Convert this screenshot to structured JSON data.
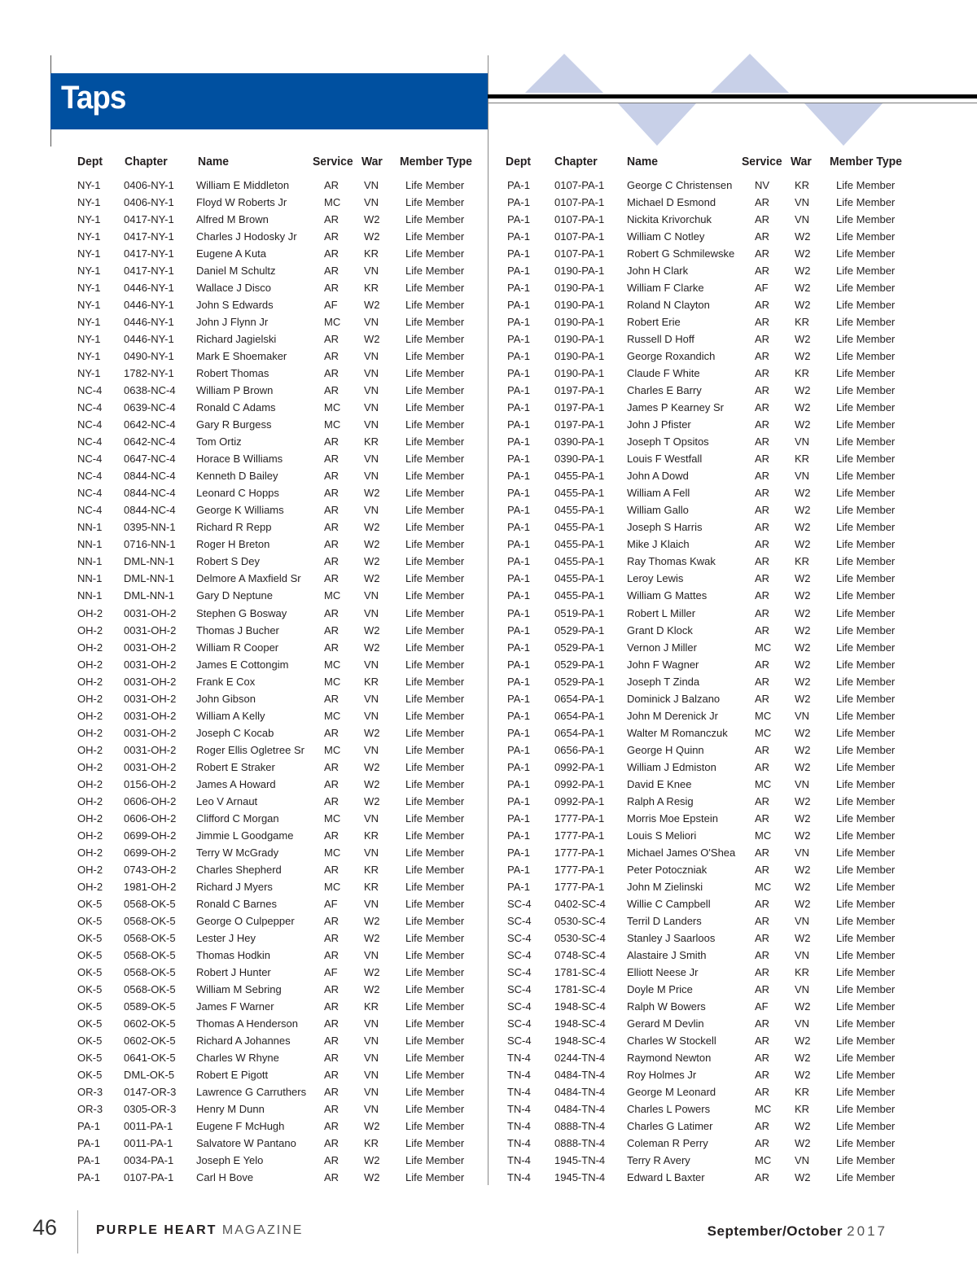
{
  "header": {
    "title": "Taps"
  },
  "columns": [
    "Dept",
    "Chapter",
    "Name",
    "Service",
    "War",
    "Member Type"
  ],
  "colors": {
    "banner": "#0050a0",
    "decoration": "#c8d0e8"
  },
  "left": {
    "rows": [
      [
        "NY-1",
        "0406-NY-1",
        "William E Middleton",
        "AR",
        "VN",
        "Life Member"
      ],
      [
        "NY-1",
        "0406-NY-1",
        "Floyd W Roberts Jr",
        "MC",
        "VN",
        "Life Member"
      ],
      [
        "NY-1",
        "0417-NY-1",
        "Alfred M Brown",
        "AR",
        "W2",
        "Life Member"
      ],
      [
        "NY-1",
        "0417-NY-1",
        "Charles J Hodosky Jr",
        "AR",
        "W2",
        "Life Member"
      ],
      [
        "NY-1",
        "0417-NY-1",
        "Eugene A Kuta",
        "AR",
        "KR",
        "Life Member"
      ],
      [
        "NY-1",
        "0417-NY-1",
        "Daniel M Schultz",
        "AR",
        "VN",
        "Life Member"
      ],
      [
        "NY-1",
        "0446-NY-1",
        "Wallace J Disco",
        "AR",
        "KR",
        "Life Member"
      ],
      [
        "NY-1",
        "0446-NY-1",
        "John S Edwards",
        "AF",
        "W2",
        "Life Member"
      ],
      [
        "NY-1",
        "0446-NY-1",
        "John J Flynn Jr",
        "MC",
        "VN",
        "Life Member"
      ],
      [
        "NY-1",
        "0446-NY-1",
        "Richard Jagielski",
        "AR",
        "W2",
        "Life Member"
      ],
      [
        "NY-1",
        "0490-NY-1",
        "Mark E Shoemaker",
        "AR",
        "VN",
        "Life Member"
      ],
      [
        "NY-1",
        "1782-NY-1",
        "Robert Thomas",
        "AR",
        "VN",
        "Life Member"
      ],
      [
        "NC-4",
        "0638-NC-4",
        "William P Brown",
        "AR",
        "VN",
        "Life Member"
      ],
      [
        "NC-4",
        "0639-NC-4",
        "Ronald C Adams",
        "MC",
        "VN",
        "Life Member"
      ],
      [
        "NC-4",
        "0642-NC-4",
        "Gary R Burgess",
        "MC",
        "VN",
        "Life Member"
      ],
      [
        "NC-4",
        "0642-NC-4",
        "Tom Ortiz",
        "AR",
        "KR",
        "Life Member"
      ],
      [
        "NC-4",
        "0647-NC-4",
        "Horace B Williams",
        "AR",
        "VN",
        "Life Member"
      ],
      [
        "NC-4",
        "0844-NC-4",
        "Kenneth D Bailey",
        "AR",
        "VN",
        "Life Member"
      ],
      [
        "NC-4",
        "0844-NC-4",
        "Leonard C Hopps",
        "AR",
        "W2",
        "Life Member"
      ],
      [
        "NC-4",
        "0844-NC-4",
        "George K Williams",
        "AR",
        "VN",
        "Life Member"
      ],
      [
        "NN-1",
        "0395-NN-1",
        "Richard R Repp",
        "AR",
        "W2",
        "Life Member"
      ],
      [
        "NN-1",
        "0716-NN-1",
        "Roger H Breton",
        "AR",
        "W2",
        "Life Member"
      ],
      [
        "NN-1",
        "DML-NN-1",
        "Robert S Dey",
        "AR",
        "W2",
        "Life Member"
      ],
      [
        "NN-1",
        "DML-NN-1",
        "Delmore A Maxfield Sr",
        "AR",
        "W2",
        "Life Member"
      ],
      [
        "NN-1",
        "DML-NN-1",
        "Gary D Neptune",
        "MC",
        "VN",
        "Life Member"
      ],
      [
        "OH-2",
        "0031-OH-2",
        "Stephen G Bosway",
        "AR",
        "VN",
        "Life Member"
      ],
      [
        "OH-2",
        "0031-OH-2",
        "Thomas J Bucher",
        "AR",
        "W2",
        "Life Member"
      ],
      [
        "OH-2",
        "0031-OH-2",
        "William R Cooper",
        "AR",
        "W2",
        "Life Member"
      ],
      [
        "OH-2",
        "0031-OH-2",
        "James E Cottongim",
        "MC",
        "VN",
        "Life Member"
      ],
      [
        "OH-2",
        "0031-OH-2",
        "Frank E Cox",
        "MC",
        "KR",
        "Life Member"
      ],
      [
        "OH-2",
        "0031-OH-2",
        "John Gibson",
        "AR",
        "VN",
        "Life Member"
      ],
      [
        "OH-2",
        "0031-OH-2",
        "William A Kelly",
        "MC",
        "VN",
        "Life Member"
      ],
      [
        "OH-2",
        "0031-OH-2",
        "Joseph C Kocab",
        "AR",
        "W2",
        "Life Member"
      ],
      [
        "OH-2",
        "0031-OH-2",
        "Roger Ellis Ogletree Sr",
        "MC",
        "VN",
        "Life Member"
      ],
      [
        "OH-2",
        "0031-OH-2",
        "Robert E Straker",
        "AR",
        "W2",
        "Life Member"
      ],
      [
        "OH-2",
        "0156-OH-2",
        "James A Howard",
        "AR",
        "W2",
        "Life Member"
      ],
      [
        "OH-2",
        "0606-OH-2",
        "Leo V Arnaut",
        "AR",
        "W2",
        "Life Member"
      ],
      [
        "OH-2",
        "0606-OH-2",
        "Clifford C Morgan",
        "MC",
        "VN",
        "Life Member"
      ],
      [
        "OH-2",
        "0699-OH-2",
        "Jimmie L Goodgame",
        "AR",
        "KR",
        "Life Member"
      ],
      [
        "OH-2",
        "0699-OH-2",
        "Terry W McGrady",
        "MC",
        "VN",
        "Life Member"
      ],
      [
        "OH-2",
        "0743-OH-2",
        "Charles Shepherd",
        "AR",
        "KR",
        "Life Member"
      ],
      [
        "OH-2",
        "1981-OH-2",
        "Richard J Myers",
        "MC",
        "KR",
        "Life Member"
      ],
      [
        "OK-5",
        "0568-OK-5",
        "Ronald C Barnes",
        "AF",
        "VN",
        "Life Member"
      ],
      [
        "OK-5",
        "0568-OK-5",
        "George O Culpepper",
        "AR",
        "W2",
        "Life Member"
      ],
      [
        "OK-5",
        "0568-OK-5",
        "Lester J Hey",
        "AR",
        "W2",
        "Life Member"
      ],
      [
        "OK-5",
        "0568-OK-5",
        "Thomas Hodkin",
        "AR",
        "VN",
        "Life Member"
      ],
      [
        "OK-5",
        "0568-OK-5",
        "Robert J Hunter",
        "AF",
        "W2",
        "Life Member"
      ],
      [
        "OK-5",
        "0568-OK-5",
        "William M Sebring",
        "AR",
        "W2",
        "Life Member"
      ],
      [
        "OK-5",
        "0589-OK-5",
        "James F Warner",
        "AR",
        "KR",
        "Life Member"
      ],
      [
        "OK-5",
        "0602-OK-5",
        "Thomas A Henderson",
        "AR",
        "VN",
        "Life Member"
      ],
      [
        "OK-5",
        "0602-OK-5",
        "Richard A Johannes",
        "AR",
        "VN",
        "Life Member"
      ],
      [
        "OK-5",
        "0641-OK-5",
        "Charles W Rhyne",
        "AR",
        "VN",
        "Life Member"
      ],
      [
        "OK-5",
        "DML-OK-5",
        "Robert E Pigott",
        "AR",
        "VN",
        "Life Member"
      ],
      [
        "OR-3",
        "0147-OR-3",
        "Lawrence G Carruthers",
        "AR",
        "VN",
        "Life Member"
      ],
      [
        "OR-3",
        "0305-OR-3",
        "Henry M Dunn",
        "AR",
        "VN",
        "Life Member"
      ],
      [
        "PA-1",
        "0011-PA-1",
        "Eugene F McHugh",
        "AR",
        "W2",
        "Life Member"
      ],
      [
        "PA-1",
        "0011-PA-1",
        "Salvatore W Pantano",
        "AR",
        "KR",
        "Life Member"
      ],
      [
        "PA-1",
        "0034-PA-1",
        "Joseph E Yelo",
        "AR",
        "W2",
        "Life Member"
      ],
      [
        "PA-1",
        "0107-PA-1",
        "Carl H Bove",
        "AR",
        "W2",
        "Life Member"
      ]
    ]
  },
  "right": {
    "rows": [
      [
        "PA-1",
        "0107-PA-1",
        "George C Christensen",
        "NV",
        "KR",
        "Life Member"
      ],
      [
        "PA-1",
        "0107-PA-1",
        "Michael D Esmond",
        "AR",
        "VN",
        "Life Member"
      ],
      [
        "PA-1",
        "0107-PA-1",
        "Nickita Krivorchuk",
        "AR",
        "VN",
        "Life Member"
      ],
      [
        "PA-1",
        "0107-PA-1",
        "William C Notley",
        "AR",
        "W2",
        "Life Member"
      ],
      [
        "PA-1",
        "0107-PA-1",
        "Robert G Schmilewske",
        "AR",
        "W2",
        "Life Member"
      ],
      [
        "PA-1",
        "0190-PA-1",
        "John H Clark",
        "AR",
        "W2",
        "Life Member"
      ],
      [
        "PA-1",
        "0190-PA-1",
        "William F Clarke",
        "AF",
        "W2",
        "Life Member"
      ],
      [
        "PA-1",
        "0190-PA-1",
        "Roland N Clayton",
        "AR",
        "W2",
        "Life Member"
      ],
      [
        "PA-1",
        "0190-PA-1",
        "Robert Erie",
        "AR",
        "KR",
        "Life Member"
      ],
      [
        "PA-1",
        "0190-PA-1",
        "Russell D Hoff",
        "AR",
        "W2",
        "Life Member"
      ],
      [
        "PA-1",
        "0190-PA-1",
        "George Roxandich",
        "AR",
        "W2",
        "Life Member"
      ],
      [
        "PA-1",
        "0190-PA-1",
        "Claude F White",
        "AR",
        "KR",
        "Life Member"
      ],
      [
        "PA-1",
        "0197-PA-1",
        "Charles E Barry",
        "AR",
        "W2",
        "Life Member"
      ],
      [
        "PA-1",
        "0197-PA-1",
        "James P Kearney Sr",
        "AR",
        "W2",
        "Life Member"
      ],
      [
        "PA-1",
        "0197-PA-1",
        "John J Pfister",
        "AR",
        "W2",
        "Life Member"
      ],
      [
        "PA-1",
        "0390-PA-1",
        "Joseph T Opsitos",
        "AR",
        "VN",
        "Life Member"
      ],
      [
        "PA-1",
        "0390-PA-1",
        "Louis F Westfall",
        "AR",
        "KR",
        "Life Member"
      ],
      [
        "PA-1",
        "0455-PA-1",
        "John A Dowd",
        "AR",
        "VN",
        "Life Member"
      ],
      [
        "PA-1",
        "0455-PA-1",
        "William A Fell",
        "AR",
        "W2",
        "Life Member"
      ],
      [
        "PA-1",
        "0455-PA-1",
        "William Gallo",
        "AR",
        "W2",
        "Life Member"
      ],
      [
        "PA-1",
        "0455-PA-1",
        "Joseph S Harris",
        "AR",
        "W2",
        "Life Member"
      ],
      [
        "PA-1",
        "0455-PA-1",
        "Mike J Klaich",
        "AR",
        "W2",
        "Life Member"
      ],
      [
        "PA-1",
        "0455-PA-1",
        "Ray Thomas Kwak",
        "AR",
        "KR",
        "Life Member"
      ],
      [
        "PA-1",
        "0455-PA-1",
        "Leroy Lewis",
        "AR",
        "W2",
        "Life Member"
      ],
      [
        "PA-1",
        "0455-PA-1",
        "William G Mattes",
        "AR",
        "W2",
        "Life Member"
      ],
      [
        "PA-1",
        "0519-PA-1",
        "Robert L Miller",
        "AR",
        "W2",
        "Life Member"
      ],
      [
        "PA-1",
        "0529-PA-1",
        "Grant D Klock",
        "AR",
        "W2",
        "Life Member"
      ],
      [
        "PA-1",
        "0529-PA-1",
        "Vernon J Miller",
        "MC",
        "W2",
        "Life Member"
      ],
      [
        "PA-1",
        "0529-PA-1",
        "John F Wagner",
        "AR",
        "W2",
        "Life Member"
      ],
      [
        "PA-1",
        "0529-PA-1",
        "Joseph T Zinda",
        "AR",
        "W2",
        "Life Member"
      ],
      [
        "PA-1",
        "0654-PA-1",
        "Dominick J Balzano",
        "AR",
        "W2",
        "Life Member"
      ],
      [
        "PA-1",
        "0654-PA-1",
        "John M Derenick Jr",
        "MC",
        "VN",
        "Life Member"
      ],
      [
        "PA-1",
        "0654-PA-1",
        "Walter M Romanczuk",
        "MC",
        "W2",
        "Life Member"
      ],
      [
        "PA-1",
        "0656-PA-1",
        "George H Quinn",
        "AR",
        "W2",
        "Life Member"
      ],
      [
        "PA-1",
        "0992-PA-1",
        "William J Edmiston",
        "AR",
        "W2",
        "Life Member"
      ],
      [
        "PA-1",
        "0992-PA-1",
        "David E Knee",
        "MC",
        "VN",
        "Life Member"
      ],
      [
        "PA-1",
        "0992-PA-1",
        "Ralph A Resig",
        "AR",
        "W2",
        "Life Member"
      ],
      [
        "PA-1",
        "1777-PA-1",
        "Morris Moe Epstein",
        "AR",
        "W2",
        "Life Member"
      ],
      [
        "PA-1",
        "1777-PA-1",
        "Louis S Meliori",
        "MC",
        "W2",
        "Life Member"
      ],
      [
        "PA-1",
        "1777-PA-1",
        "Michael James O'Shea",
        "AR",
        "VN",
        "Life Member"
      ],
      [
        "PA-1",
        "1777-PA-1",
        "Peter Potoczniak",
        "AR",
        "W2",
        "Life Member"
      ],
      [
        "PA-1",
        "1777-PA-1",
        "John M Zielinski",
        "MC",
        "W2",
        "Life Member"
      ],
      [
        "SC-4",
        "0402-SC-4",
        "Willie C Campbell",
        "AR",
        "W2",
        "Life Member"
      ],
      [
        "SC-4",
        "0530-SC-4",
        "Terril D Landers",
        "AR",
        "VN",
        "Life Member"
      ],
      [
        "SC-4",
        "0530-SC-4",
        "Stanley J Saarloos",
        "AR",
        "W2",
        "Life Member"
      ],
      [
        "SC-4",
        "0748-SC-4",
        "Alastaire J Smith",
        "AR",
        "VN",
        "Life Member"
      ],
      [
        "SC-4",
        "1781-SC-4",
        "Elliott Neese Jr",
        "AR",
        "KR",
        "Life Member"
      ],
      [
        "SC-4",
        "1781-SC-4",
        "Doyle M Price",
        "AR",
        "VN",
        "Life Member"
      ],
      [
        "SC-4",
        "1948-SC-4",
        "Ralph W Bowers",
        "AF",
        "W2",
        "Life Member"
      ],
      [
        "SC-4",
        "1948-SC-4",
        "Gerard M Devlin",
        "AR",
        "VN",
        "Life Member"
      ],
      [
        "SC-4",
        "1948-SC-4",
        "Charles W Stockell",
        "AR",
        "W2",
        "Life Member"
      ],
      [
        "TN-4",
        "0244-TN-4",
        "Raymond Newton",
        "AR",
        "W2",
        "Life Member"
      ],
      [
        "TN-4",
        "0484-TN-4",
        "Roy Holmes Jr",
        "AR",
        "W2",
        "Life Member"
      ],
      [
        "TN-4",
        "0484-TN-4",
        "George M Leonard",
        "AR",
        "KR",
        "Life Member"
      ],
      [
        "TN-4",
        "0484-TN-4",
        "Charles L Powers",
        "MC",
        "KR",
        "Life Member"
      ],
      [
        "TN-4",
        "0888-TN-4",
        "Charles G Latimer",
        "AR",
        "W2",
        "Life Member"
      ],
      [
        "TN-4",
        "0888-TN-4",
        "Coleman R Perry",
        "AR",
        "W2",
        "Life Member"
      ],
      [
        "TN-4",
        "1945-TN-4",
        "Terry R Avery",
        "MC",
        "VN",
        "Life Member"
      ],
      [
        "TN-4",
        "1945-TN-4",
        "Edward L Baxter",
        "AR",
        "W2",
        "Life Member"
      ]
    ]
  },
  "footer": {
    "page_number": "46",
    "magazine_bold": "PURPLE HEART",
    "magazine_light": "MAGAZINE",
    "issue_bold": "September/October",
    "issue_year": "2017"
  }
}
